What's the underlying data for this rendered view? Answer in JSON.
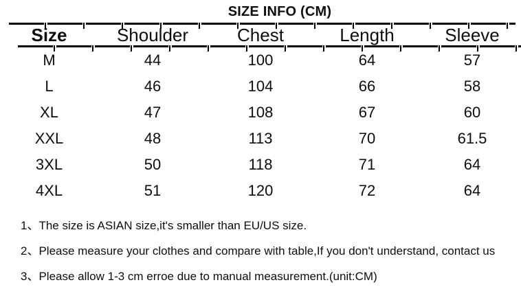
{
  "title": "SIZE INFO (CM)",
  "table": {
    "columns": [
      "Size",
      "Shoulder",
      "Chest",
      "Length",
      "Sleeve"
    ],
    "rows": [
      [
        "M",
        "44",
        "100",
        "64",
        "57"
      ],
      [
        "L",
        "46",
        "104",
        "66",
        "58"
      ],
      [
        "XL",
        "47",
        "108",
        "67",
        "60"
      ],
      [
        "XXL",
        "48",
        "113",
        "70",
        "61.5"
      ],
      [
        "3XL",
        "50",
        "118",
        "71",
        "64"
      ],
      [
        "4XL",
        "51",
        "120",
        "72",
        "64"
      ]
    ]
  },
  "notes": [
    "1、The size is ASIAN size,it's smaller than EU/US size.",
    "2、Please measure your clothes and compare with table,If you don't understand, contact us",
    "3、Please allow 1-3 cm erroe due to manual measurement.(unit:CM)"
  ],
  "colors": {
    "text": "#0d0d0d",
    "rule": "#000000",
    "background": "#ffffff"
  },
  "chart_data": {
    "type": "table",
    "title": "SIZE INFO (CM)",
    "columns": [
      "Size",
      "Shoulder",
      "Chest",
      "Length",
      "Sleeve"
    ],
    "rows": [
      [
        "M",
        44,
        100,
        64,
        57
      ],
      [
        "L",
        46,
        104,
        66,
        58
      ],
      [
        "XL",
        47,
        108,
        67,
        60
      ],
      [
        "XXL",
        48,
        113,
        70,
        61.5
      ],
      [
        "3XL",
        50,
        118,
        71,
        64
      ],
      [
        "4XL",
        51,
        120,
        72,
        64
      ]
    ]
  }
}
